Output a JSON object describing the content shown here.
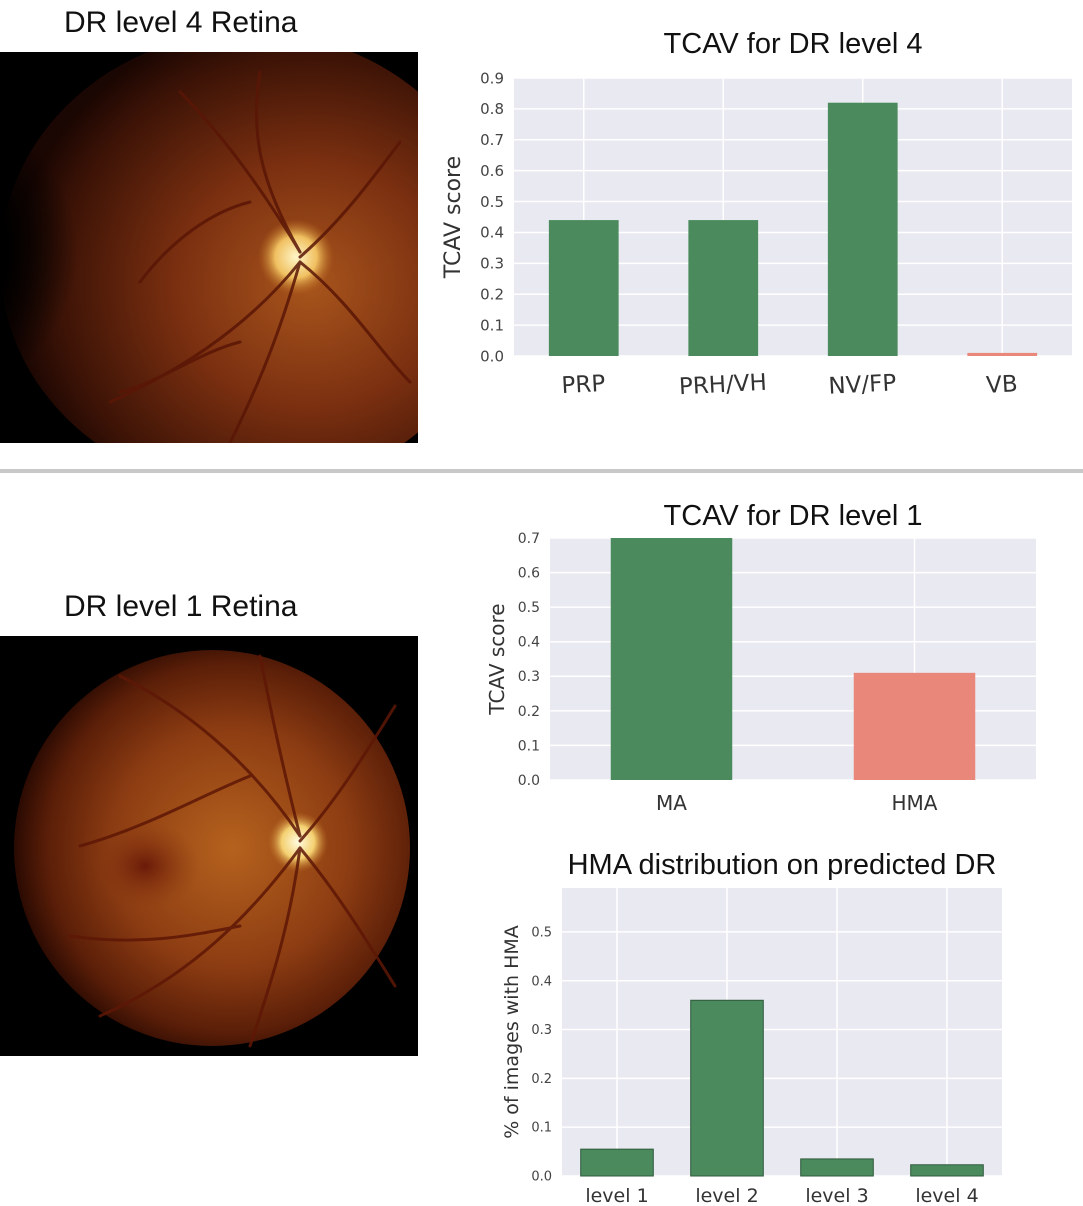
{
  "top_section": {
    "image_title": "DR level 4 Retina"
  },
  "bottom_section": {
    "image_title": "DR level 1 Retina"
  },
  "colors": {
    "bar_green": "#4a8a5c",
    "bar_red": "#e8877a",
    "plot_bg": "#e9e9f1",
    "grid": "#ffffff",
    "tick_text": "#444444"
  },
  "chart_data": [
    {
      "type": "bar",
      "title": "TCAV for DR level 4",
      "ylabel": "TCAV score",
      "xlabel": "",
      "categories": [
        "PRP",
        "PRH/VH",
        "NV/FP",
        "VB"
      ],
      "values": [
        0.44,
        0.44,
        0.82,
        0.01
      ],
      "bar_colors": [
        "#4a8a5c",
        "#4a8a5c",
        "#4a8a5c",
        "#e8877a"
      ],
      "ylim": [
        0,
        0.9
      ],
      "yticks": [
        "0.0",
        "0.1",
        "0.2",
        "0.3",
        "0.4",
        "0.5",
        "0.6",
        "0.7",
        "0.8",
        "0.9"
      ],
      "grid": true
    },
    {
      "type": "bar",
      "title": "TCAV for DR level 1",
      "ylabel": "TCAV score",
      "xlabel": "",
      "categories": [
        "MA",
        "HMA"
      ],
      "values": [
        0.7,
        0.31
      ],
      "bar_colors": [
        "#4a8a5c",
        "#e8877a"
      ],
      "ylim": [
        0,
        0.7
      ],
      "yticks": [
        "0.0",
        "0.1",
        "0.2",
        "0.3",
        "0.4",
        "0.5",
        "0.6",
        "0.7"
      ],
      "grid": true
    },
    {
      "type": "bar",
      "title": "HMA distribution on predicted DR",
      "ylabel": "% of images with HMA",
      "xlabel": "",
      "categories": [
        "level 1",
        "level 2",
        "level 3",
        "level 4"
      ],
      "values": [
        0.055,
        0.36,
        0.035,
        0.023
      ],
      "bar_colors": [
        "#4a8a5c",
        "#4a8a5c",
        "#4a8a5c",
        "#4a8a5c"
      ],
      "ylim": [
        0,
        0.59
      ],
      "yticks": [
        "0.0",
        "0.1",
        "0.2",
        "0.3",
        "0.4",
        "0.5"
      ],
      "grid": true
    }
  ]
}
